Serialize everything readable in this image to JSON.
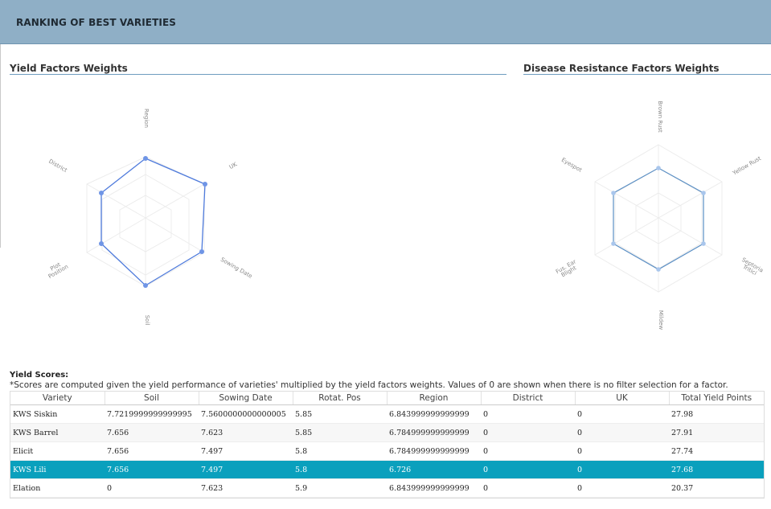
{
  "header": {
    "title": "RANKING OF BEST VARIETIES"
  },
  "yield_weights": {
    "title": "Yield Factors Weights",
    "axes": [
      "Region",
      "UK",
      "Sowing Date",
      "Soil",
      "Plot Position",
      "District"
    ],
    "line_color": "#4f7bdc"
  },
  "disease_weights": {
    "title": "Disease Resistance Factors Weights",
    "axes": [
      "Brown Rust",
      "Yellow Rust",
      "Septoria Tritici",
      "Mildew",
      "Fus. Ear Blight",
      "Eyespot"
    ],
    "line_color": "#5b8fc4"
  },
  "scores": {
    "title": "Yield Scores:",
    "note": "*Scores are computed given the yield performance of varieties' multiplied by the yield factors weights. Values of 0 are shown when there is no filter selection for a factor.",
    "columns": [
      "Variety",
      "Soil",
      "Sowing Date",
      "Rotat. Pos",
      "Region",
      "District",
      "UK",
      "Total Yield Points"
    ],
    "rows": [
      [
        "KWS Siskin",
        "7.7219999999999995",
        "7.5600000000000005",
        "5.85",
        "6.843999999999999",
        "0",
        "0",
        "27.98"
      ],
      [
        "KWS Barrel",
        "7.656",
        "7.623",
        "5.85",
        "6.784999999999999",
        "0",
        "0",
        "27.91"
      ],
      [
        "Elicit",
        "7.656",
        "7.497",
        "5.8",
        "6.784999999999999",
        "0",
        "0",
        "27.74"
      ],
      [
        "KWS Lili",
        "7.656",
        "7.497",
        "5.8",
        "6.726",
        "0",
        "0",
        "27.68"
      ],
      [
        "Elation",
        "0",
        "7.623",
        "5.9",
        "6.843999999999999",
        "0",
        "0",
        "20.37"
      ]
    ],
    "selected_row": "KWS Lili",
    "selected_color": "#0aa0bd"
  }
}
